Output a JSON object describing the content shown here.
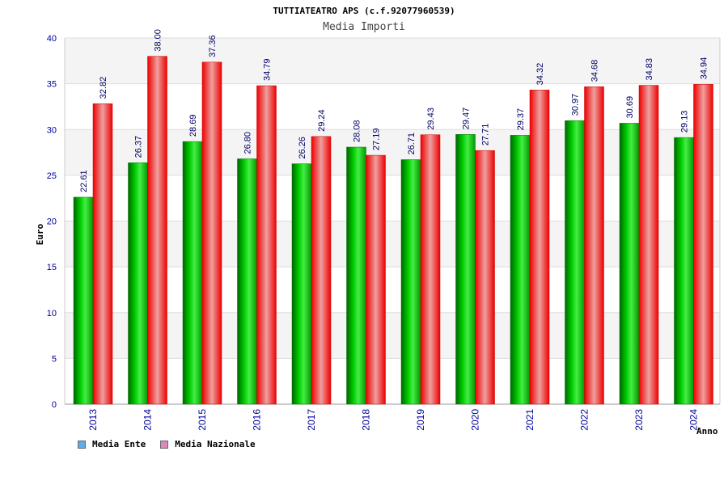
{
  "chart_data": {
    "type": "bar",
    "title": "TUTTIATEATRO APS (c.f.92077960539)",
    "subtitle": "Media Importi",
    "ylabel": "Euro",
    "xlabel": "Anno",
    "ylim": [
      0,
      40
    ],
    "yticks": [
      0,
      5,
      10,
      15,
      20,
      25,
      30,
      35,
      40
    ],
    "categories": [
      "2013",
      "2014",
      "2015",
      "2016",
      "2017",
      "2018",
      "2019",
      "2020",
      "2021",
      "2022",
      "2023",
      "2024"
    ],
    "series": [
      {
        "name": "Media Ente",
        "values": [
          22.61,
          26.37,
          28.69,
          26.8,
          26.26,
          28.08,
          26.71,
          29.47,
          29.37,
          30.97,
          30.69,
          29.13
        ],
        "labels": [
          "22.61",
          "26.37",
          "28.69",
          "26.80",
          "26.26",
          "28.08",
          "26.71",
          "29.47",
          "29.37",
          "30.97",
          "30.69",
          "29.13"
        ],
        "color": "#00aa00",
        "legend_color": "#66aaee"
      },
      {
        "name": "Media Nazionale",
        "values": [
          32.82,
          38.0,
          37.36,
          34.79,
          29.24,
          27.19,
          29.43,
          27.71,
          34.32,
          34.68,
          34.83,
          34.94
        ],
        "labels": [
          "32.82",
          "38.00",
          "37.36",
          "34.79",
          "29.24",
          "27.19",
          "29.43",
          "27.71",
          "34.32",
          "34.68",
          "34.83",
          "34.94"
        ],
        "color": "#ee1111",
        "legend_color": "#dd88bb"
      }
    ],
    "grid": true,
    "legend_position": "bottom-left"
  }
}
